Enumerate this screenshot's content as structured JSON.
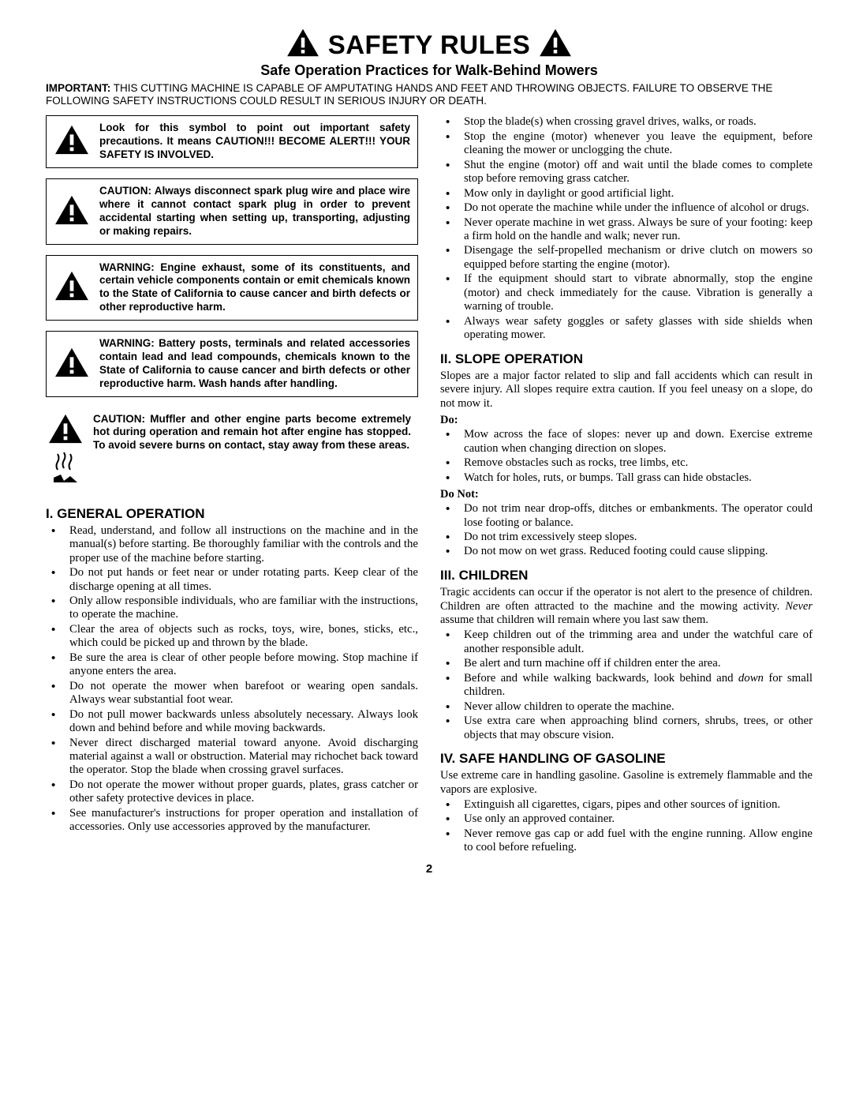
{
  "header": {
    "title": "SAFETY RULES",
    "subtitle": "Safe Operation Practices for Walk-Behind Mowers",
    "important_label": "IMPORTANT:",
    "important_text": "THIS CUTTING MACHINE IS CAPABLE OF AMPUTATING HANDS AND FEET AND THROWING OBJECTS.  FAILURE TO OBSERVE THE FOLLOWING SAFETY INSTRUCTIONS COULD RESULT IN SERIOUS INJURY OR DEATH."
  },
  "warning_boxes": [
    "Look for this symbol to point out important safety precautions. It means CAUTION!!! BECOME ALERT!!! YOUR SAFETY IS INVOLVED.",
    "CAUTION: Always disconnect spark plug wire and place wire where it cannot contact spark plug in order to prevent accidental starting when setting up, transporting, adjusting or making repairs.",
    "WARNING: Engine exhaust, some of its constituents, and certain vehicle components contain or emit chemicals known to the State of California to cause cancer and birth defects or other reproductive harm.",
    "WARNING: Battery posts, terminals and related accessories contain lead and lead compounds, chemicals known to the State of California to cause cancer and birth defects or other reproductive harm. Wash hands after handling."
  ],
  "muffler_warning": "CAUTION: Muffler and other engine parts become extremely hot during operation and remain hot after engine has stopped. To avoid severe burns on contact, stay away from these areas.",
  "sections": {
    "general": {
      "heading": "I. GENERAL OPERATION",
      "items_a": [
        "Read, understand, and follow all instructions on the machine and in the manual(s) before starting. Be thoroughly familiar with the controls and the proper use of the machine before starting.",
        "Do not put hands or feet near or under rotating parts. Keep clear of the discharge opening at all times.",
        "Only allow responsible individuals, who are familiar with the instructions, to operate the machine.",
        "Clear the area of objects such as  rocks, toys, wire, bones, sticks, etc., which could be picked up and thrown by the blade.",
        "Be sure the area is clear of other people before mowing.  Stop machine if anyone enters the area.",
        "Do not operate the mower when barefoot or wearing open sandals.  Always wear substantial foot wear.",
        "Do not pull mower backwards unless absolutely necessary.  Always look down and behind before and while moving backwards.",
        "Never direct discharged material toward anyone.  Avoid discharging material against a wall or obstruction.  Material may richochet back toward the operator.  Stop the blade when crossing gravel surfaces.",
        "Do not operate the mower without proper guards, plates, grass catcher or other safety protective devices in place.",
        "See manufacturer's instructions for proper operation and installation of accessories. Only use accessories approved by the manufacturer."
      ],
      "items_b": [
        "Stop the blade(s) when crossing gravel drives, walks, or roads.",
        "Stop the engine (motor) whenever you leave the equipment, before cleaning the mower or unclogging the chute.",
        "Shut the engine (motor) off and wait until the blade comes to complete stop before removing grass catcher.",
        "Mow only in daylight or good artificial light.",
        "Do not operate the machine while under the influence of alcohol or drugs.",
        "Never operate machine in wet grass.  Always be sure of your footing: keep a firm hold on the handle and walk; never run.",
        "Disengage the self-propelled mechanism or drive clutch on mowers so equipped before starting the engine (motor).",
        "If the equipment should start to vibrate abnormally, stop the engine (motor) and check immediately for the cause.  Vibration is generally a warning of trouble.",
        "Always wear safety goggles or safety glasses with side shields when operating mower."
      ]
    },
    "slope": {
      "heading": "II.  SLOPE OPERATION",
      "intro": "Slopes are a major factor related to slip and fall accidents which can result in severe injury.  All slopes require extra caution.  If you feel uneasy on a slope, do not mow it.",
      "do_label": "Do:",
      "do_items": [
        "Mow across the face of slopes: never up and down.  Exercise extreme caution when changing direction on slopes.",
        "Remove obstacles such as rocks, tree limbs, etc.",
        "Watch for holes, ruts, or bumps. Tall grass can hide obstacles."
      ],
      "donot_label": "Do Not:",
      "donot_items": [
        "Do not trim near drop-offs, ditches or embankments. The operator could lose footing or balance.",
        "Do not trim excessively steep slopes.",
        "Do not mow on wet grass. Reduced footing could cause slipping."
      ]
    },
    "children": {
      "heading": "III.  CHILDREN",
      "intro_pre": "Tragic accidents can occur if the operator is not alert to the presence of children.  Children are often attracted to the machine and the mowing activity. ",
      "intro_em": "Never",
      "intro_post": " assume that children will remain where you last saw them.",
      "items": [
        "Keep children out of the trimming area and under the watchful care of another responsible adult.",
        "Be alert and turn machine off if children enter the area.",
        "Before and while walking backwards, look behind and <em>down</em> for small children.",
        "Never allow children to operate the machine.",
        "Use extra care when approaching blind corners, shrubs, trees, or other objects that may obscure vision."
      ]
    },
    "gasoline": {
      "heading": "IV.  SAFE HANDLING OF GASOLINE",
      "intro": "Use extreme care in handling gasoline.  Gasoline is extremely flammable and the vapors are explosive.",
      "items": [
        "Extinguish all cigarettes, cigars, pipes and other sources of ignition.",
        "Use only an approved container.",
        "Never remove gas cap or add fuel with the engine running.  Allow engine to cool before refueling."
      ]
    }
  },
  "page_number": "2",
  "icons": {
    "warning_triangle": "warning-triangle-icon"
  }
}
